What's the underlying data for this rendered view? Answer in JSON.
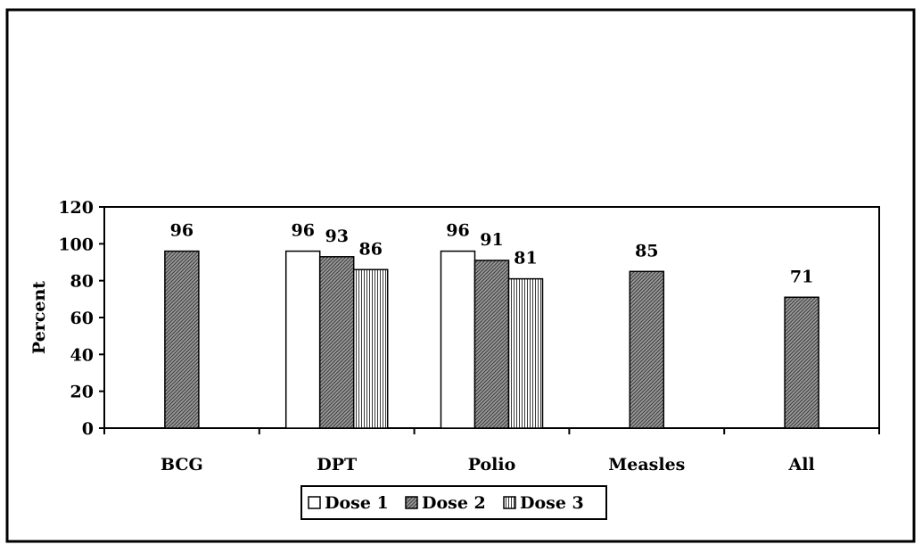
{
  "chart_data": {
    "type": "bar",
    "categories": [
      "BCG",
      "DPT",
      "Polio",
      "Measles",
      "All"
    ],
    "series": [
      {
        "name": "Dose 1",
        "values": [
          null,
          96,
          96,
          null,
          null
        ],
        "fill": "dose1"
      },
      {
        "name": "Dose 2",
        "values": [
          96,
          93,
          91,
          85,
          71
        ],
        "fill": "dose2"
      },
      {
        "name": "Dose 3",
        "values": [
          null,
          86,
          81,
          null,
          null
        ],
        "fill": "dose3"
      }
    ],
    "ylabel": "Percent",
    "ylim": [
      0,
      120
    ],
    "yticks": [
      0,
      20,
      40,
      60,
      80,
      100,
      120
    ],
    "grid": false,
    "legend_position": "bottom-center",
    "data_labels": true
  }
}
